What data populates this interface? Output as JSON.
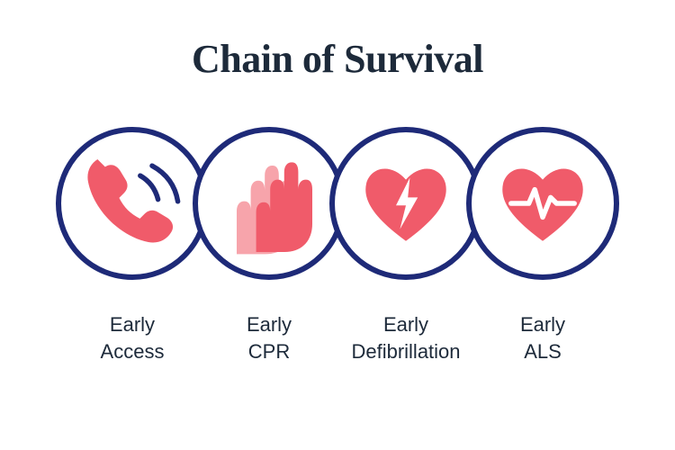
{
  "title": "Chain of Survival",
  "title_color": "#1d2a3a",
  "title_fontsize": 44,
  "background_color": "#ffffff",
  "ring": {
    "diameter": 170,
    "border_width": 6,
    "border_color": "#1e2a78",
    "overlap": 18
  },
  "icon_colors": {
    "primary": "#f05b6a",
    "primary_light": "#f7a4ab",
    "accent_white": "#ffffff"
  },
  "label_style": {
    "fontsize": 22,
    "color": "#1d2a3a",
    "weight": 500
  },
  "steps": [
    {
      "id": "access",
      "label": "Early\nAccess",
      "icon": "phone"
    },
    {
      "id": "cpr",
      "label": "Early\nCPR",
      "icon": "hands"
    },
    {
      "id": "defib",
      "label": "Early\nDefibrillation",
      "icon": "heart-bolt"
    },
    {
      "id": "als",
      "label": "Early\nALS",
      "icon": "heart-ecg"
    }
  ]
}
